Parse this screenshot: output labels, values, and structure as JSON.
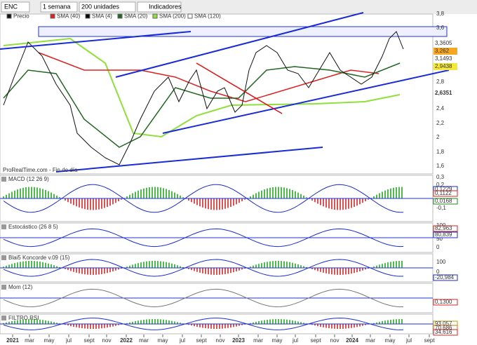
{
  "toolbar": {
    "symbol": "ENC",
    "period": "1 semana",
    "units": "200 unidades",
    "indicators": "Indicadores"
  },
  "legend": [
    "Precio",
    "SMA (40)",
    "SMA (4)",
    "SMA (20)",
    "SMA (200)",
    "SMA (120)"
  ],
  "watermark": "ProRealTime.com - Fin de día",
  "price_axis": {
    "ticks": [
      "3,8",
      "3,6",
      "2,8",
      "2,4",
      "2,2",
      "2",
      "1,8",
      "1,6"
    ],
    "tags": [
      "3,3605",
      "3,262",
      "3,1493",
      "2,9438",
      "2,6351"
    ]
  },
  "panels": [
    {
      "label": "MACD (12 26 9)",
      "ticks": [
        "0,3",
        "0,2",
        "-0,1"
      ],
      "tags": [
        "0,1229",
        "0,1122",
        "0,0168"
      ]
    },
    {
      "label": "Estocástico (26 8 5)",
      "ticks": [
        "100",
        "50",
        "0"
      ],
      "tags": [
        "82,963",
        "80,839"
      ]
    },
    {
      "label": "Blai5 Koncorde v.09 (15)",
      "ticks": [
        "100",
        "0"
      ],
      "tags": [
        "-20,984"
      ]
    },
    {
      "label": "Mom (12)",
      "ticks": [],
      "tags": [
        "0,1300"
      ]
    },
    {
      "label": "FILTRO RSI",
      "ticks": [],
      "tags": [
        "93,057",
        "70,686",
        "34,616"
      ]
    }
  ],
  "x_axis": [
    "2021",
    "mar",
    "may",
    "jul",
    "sept",
    "nov",
    "2022",
    "mar",
    "may",
    "jul",
    "sept",
    "nov",
    "2023",
    "mar",
    "may",
    "jul",
    "sept",
    "nov",
    "2024",
    "mar",
    "may",
    "jul",
    "sept"
  ]
}
